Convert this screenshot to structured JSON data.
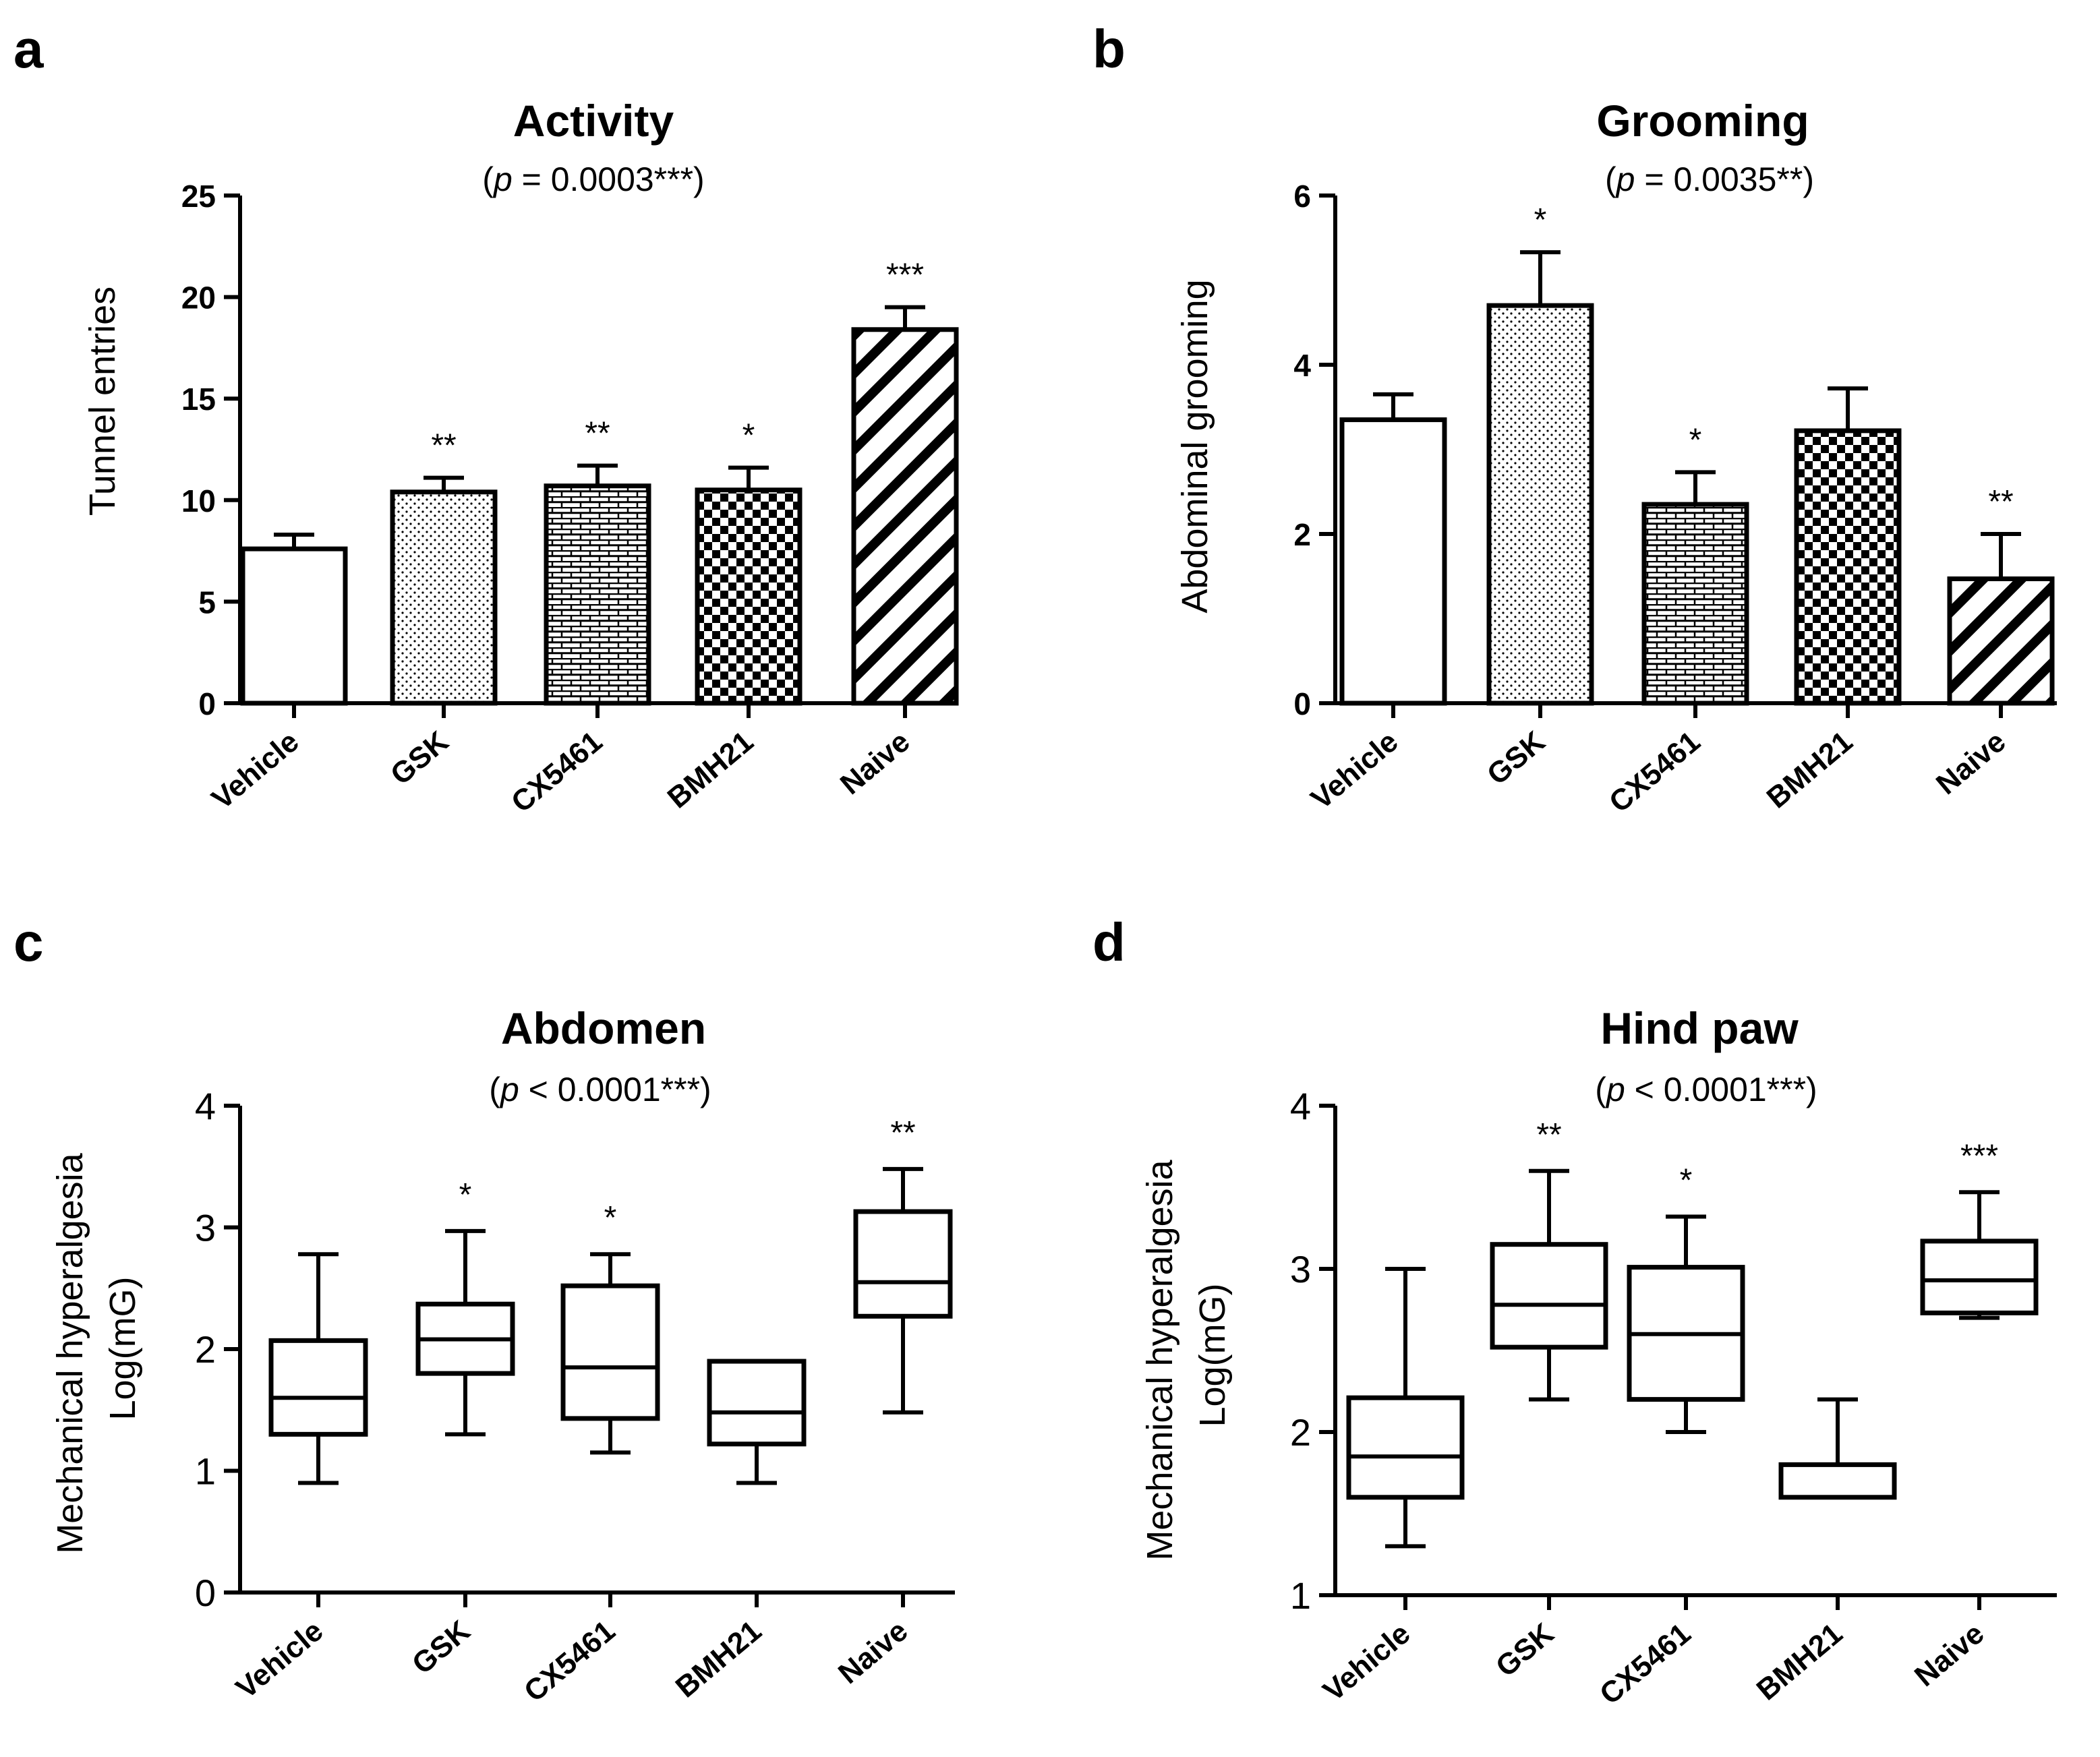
{
  "chart_data": [
    {
      "panel": "a",
      "type": "bar",
      "title": "Activity",
      "subtitle": {
        "pre": "(",
        "italic": "p",
        "post": " = 0.0003***)"
      },
      "ylabel": "Tunnel entries",
      "xlabel": "",
      "ylim": [
        0,
        25
      ],
      "yticks": [
        0,
        5,
        10,
        15,
        20,
        25
      ],
      "categories": [
        "Vehicle",
        "GSK",
        "CX5461",
        "BMH21",
        "Naive"
      ],
      "values": [
        7.6,
        10.4,
        10.7,
        10.5,
        18.4
      ],
      "errors": [
        0.7,
        0.7,
        1.0,
        1.1,
        1.1
      ],
      "patterns": [
        "none",
        "dots",
        "bricks",
        "checker",
        "diagonal"
      ],
      "significance": [
        "",
        "**",
        "**",
        "*",
        "***"
      ]
    },
    {
      "panel": "b",
      "type": "bar",
      "title": "Grooming",
      "subtitle": {
        "pre": "(",
        "italic": "p",
        "post": " = 0.0035**)"
      },
      "ylabel": "Abdominal grooming",
      "xlabel": "",
      "ylim": [
        0,
        6
      ],
      "yticks": [
        0,
        2,
        4,
        6
      ],
      "categories": [
        "Vehicle",
        "GSK",
        "CX5461",
        "BMH21",
        "Naive"
      ],
      "values": [
        3.35,
        4.7,
        2.35,
        3.22,
        1.47
      ],
      "errors": [
        0.3,
        0.63,
        0.38,
        0.5,
        0.53
      ],
      "patterns": [
        "none",
        "dots",
        "bricks",
        "checker",
        "diagonal"
      ],
      "significance": [
        "",
        "*",
        "*",
        "",
        "**"
      ]
    },
    {
      "panel": "c",
      "type": "box",
      "title": "Abdomen",
      "subtitle": {
        "pre": "(",
        "italic": "p",
        "post": " < 0.0001***)"
      },
      "ylabel_lines": [
        "Mechanical hyperalgesia",
        "Log(mG)"
      ],
      "xlabel": "",
      "ylim": [
        0,
        4
      ],
      "yticks": [
        0,
        1,
        2,
        3,
        4
      ],
      "categories": [
        "Vehicle",
        "GSK",
        "CX5461",
        "BMH21",
        "Naive"
      ],
      "boxes": [
        {
          "min": 0.9,
          "q1": 1.3,
          "median": 1.6,
          "q3": 2.07,
          "max": 2.78
        },
        {
          "min": 1.3,
          "q1": 1.8,
          "median": 2.08,
          "q3": 2.37,
          "max": 2.97
        },
        {
          "min": 1.15,
          "q1": 1.43,
          "median": 1.85,
          "q3": 2.52,
          "max": 2.78
        },
        {
          "min": 0.9,
          "q1": 1.22,
          "median": 1.48,
          "q3": 1.9,
          "max": 1.9
        },
        {
          "min": 1.48,
          "q1": 2.27,
          "median": 2.55,
          "q3": 3.13,
          "max": 3.48
        }
      ],
      "significance": [
        "",
        "*",
        "*",
        "",
        "**"
      ]
    },
    {
      "panel": "d",
      "type": "box",
      "title": "Hind paw",
      "subtitle": {
        "pre": "(",
        "italic": "p",
        "post": " < 0.0001***)"
      },
      "ylabel_lines": [
        "Mechanical hyperalgesia",
        "Log(mG)"
      ],
      "xlabel": "",
      "ylim": [
        1,
        4
      ],
      "yticks": [
        1,
        2,
        3,
        4
      ],
      "categories": [
        "Vehicle",
        "GSK",
        "CX5461",
        "BMH21",
        "Naive"
      ],
      "boxes": [
        {
          "min": 1.3,
          "q1": 1.6,
          "median": 1.85,
          "q3": 2.21,
          "max": 3.0
        },
        {
          "min": 2.2,
          "q1": 2.52,
          "median": 2.78,
          "q3": 3.15,
          "max": 3.6
        },
        {
          "min": 2.0,
          "q1": 2.2,
          "median": 2.6,
          "q3": 3.01,
          "max": 3.32
        },
        {
          "min": 1.6,
          "q1": 1.6,
          "median": 1.8,
          "q3": 1.8,
          "max": 2.2
        },
        {
          "min": 2.7,
          "q1": 2.73,
          "median": 2.93,
          "q3": 3.17,
          "max": 3.47
        }
      ],
      "significance": [
        "",
        "**",
        "*",
        "",
        "***"
      ]
    }
  ]
}
